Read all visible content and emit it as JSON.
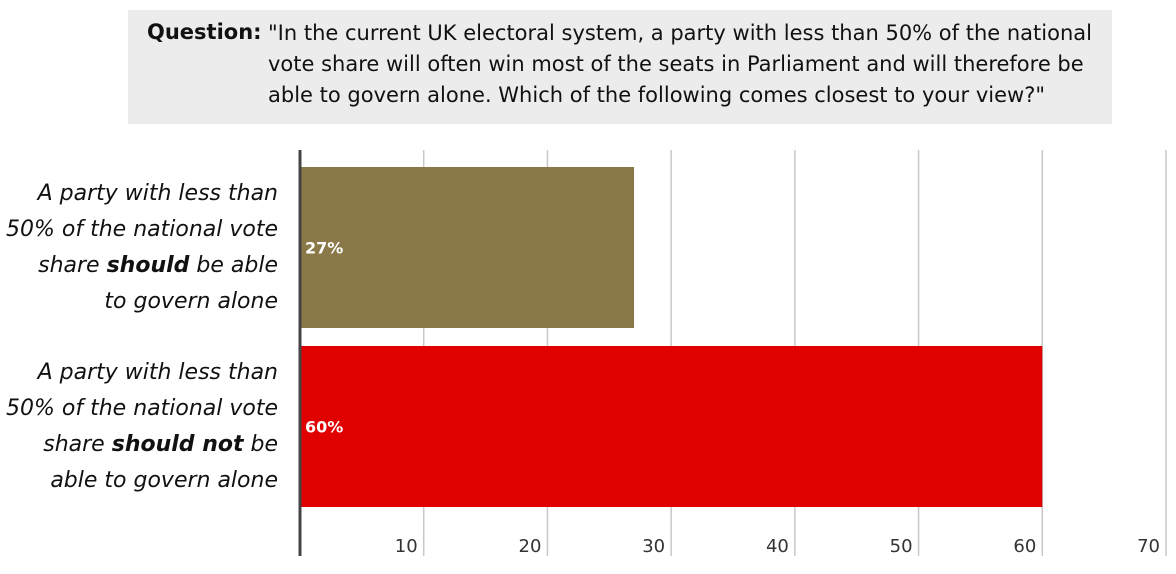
{
  "question": {
    "label": "Question:",
    "text": "\"In the current UK electoral system, a party with less than 50% of the national vote share will often win most of the seats in Parliament and will therefore be able to govern alone. Which of the following comes closest to your view?\""
  },
  "chart_data": {
    "type": "bar",
    "orientation": "horizontal",
    "categories": [
      {
        "lines": [
          [
            {
              "t": "A party with less than",
              "b": false
            }
          ],
          [
            {
              "t": "50% of the national vote",
              "b": false
            }
          ],
          [
            {
              "t": "share ",
              "b": false
            },
            {
              "t": "should",
              "b": true
            },
            {
              "t": " be able",
              "b": false
            }
          ],
          [
            {
              "t": "to govern alone",
              "b": false
            }
          ]
        ]
      },
      {
        "lines": [
          [
            {
              "t": "A party with less than",
              "b": false
            }
          ],
          [
            {
              "t": "50% of the national vote",
              "b": false
            }
          ],
          [
            {
              "t": "share ",
              "b": false
            },
            {
              "t": "should not",
              "b": true
            },
            {
              "t": " be",
              "b": false
            }
          ],
          [
            {
              "t": "able to govern alone",
              "b": false
            }
          ]
        ]
      }
    ],
    "values": [
      27,
      60
    ],
    "data_labels": [
      "27%",
      "60%"
    ],
    "colors": [
      "#8b7849",
      "#e00000"
    ],
    "xlim": [
      0,
      70
    ],
    "ticks": [
      10,
      20,
      30,
      40,
      50,
      60,
      70
    ],
    "tick_labels": [
      "10",
      "20",
      "30",
      "40",
      "50",
      "60",
      "70"
    ],
    "grid": true
  }
}
